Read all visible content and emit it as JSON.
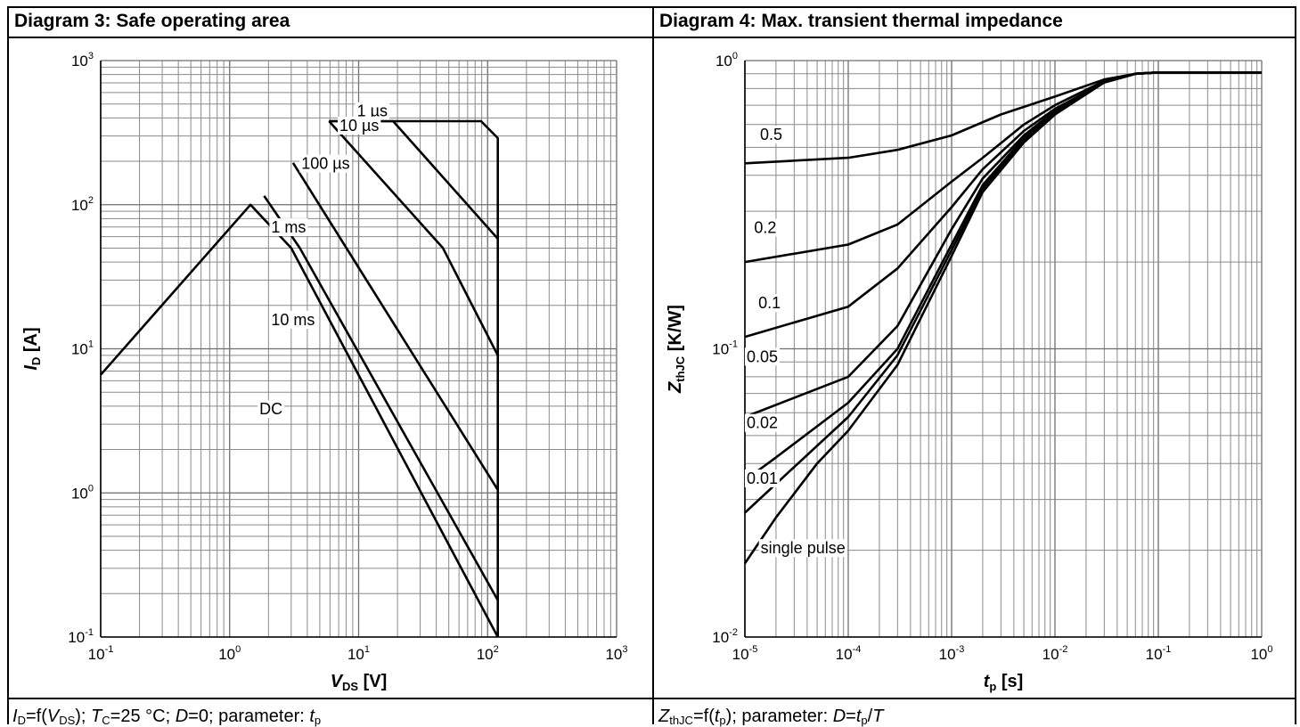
{
  "left_panel": {
    "title": "Diagram 3: Safe operating area",
    "caption": {
      "f1": "I",
      "f1_sub": "D",
      "f2": "=f(",
      "f3": "V",
      "f3_sub": "DS",
      "f4": "); ",
      "f5": "T",
      "f5_sub": "C",
      "f6": "=25 °C; ",
      "f7": "D",
      "f8": "=0; parameter: ",
      "f9": "t",
      "f9_sub": "p"
    }
  },
  "right_panel": {
    "title": "Diagram 4: Max. transient thermal impedance",
    "caption": {
      "f1": "Z",
      "f1_sub": "thJC",
      "f2": "=f(",
      "f3": "t",
      "f3_sub": "p",
      "f4": "); parameter: ",
      "f5": "D",
      "f6": "=",
      "f7": "t",
      "f7_sub": "p",
      "f8": "/",
      "f9": "T"
    }
  },
  "chart_data": [
    {
      "type": "line",
      "title": "Diagram 3: Safe operating area",
      "x_scale": "log",
      "y_scale": "log",
      "xlim": [
        0.1,
        1000
      ],
      "ylim": [
        0.1,
        1000
      ],
      "xlabel": {
        "main": "V",
        "sub": "DS",
        "unit": " [V]"
      },
      "ylabel": {
        "main": "I",
        "sub": "D",
        "unit": " [A]"
      },
      "x_ticks": [
        {
          "base": "10",
          "exp": "-1"
        },
        {
          "base": "10",
          "exp": "0"
        },
        {
          "base": "10",
          "exp": "1"
        },
        {
          "base": "10",
          "exp": "2"
        },
        {
          "base": "10",
          "exp": "3"
        }
      ],
      "y_ticks": [
        {
          "base": "10",
          "exp": "-1"
        },
        {
          "base": "10",
          "exp": "0"
        },
        {
          "base": "10",
          "exp": "1"
        },
        {
          "base": "10",
          "exp": "2"
        },
        {
          "base": "10",
          "exp": "3"
        }
      ],
      "grid": true,
      "series": [
        {
          "name": "1 µs",
          "label_at": [
            9.7,
            410
          ],
          "points": [
            [
              5.9,
              380
            ],
            [
              89,
              380
            ],
            [
              120,
              290
            ],
            [
              120,
              0.1
            ]
          ]
        },
        {
          "name": "10 µs",
          "label_at": [
            7.1,
            325
          ],
          "points": [
            [
              5.9,
              380
            ],
            [
              18.5,
              380
            ],
            [
              120,
              58
            ]
          ]
        },
        {
          "name": "100 µs",
          "label_at": [
            3.6,
            177
          ],
          "points": [
            [
              5.9,
              380
            ],
            [
              45,
              50
            ],
            [
              120,
              9
            ]
          ]
        },
        {
          "name": "1 ms",
          "label_at": [
            2.1,
            64
          ],
          "points": [
            [
              3.1,
              195
            ],
            [
              120,
              1.05
            ]
          ]
        },
        {
          "name": "10 ms",
          "label_at": [
            2.1,
            14.6
          ],
          "points": [
            [
              1.85,
              115
            ],
            [
              3.5,
              50
            ],
            [
              120,
              0.18
            ]
          ]
        },
        {
          "name": "DC",
          "label_at": [
            1.7,
            3.5
          ],
          "points": [
            [
              0.1,
              6.6
            ],
            [
              1.45,
              100
            ],
            [
              3,
              50
            ],
            [
              120,
              0.1
            ]
          ]
        }
      ]
    },
    {
      "type": "line",
      "title": "Diagram 4: Max. transient thermal impedance",
      "x_scale": "log",
      "y_scale": "log",
      "xlim": [
        1e-05,
        1
      ],
      "ylim": [
        0.01,
        1
      ],
      "xlabel": {
        "main": "t",
        "sub": "p",
        "unit": " [s]"
      },
      "ylabel": {
        "main": "Z",
        "sub": "thJC",
        "unit": " [K/W]"
      },
      "x_ticks": [
        {
          "base": "10",
          "exp": "-5"
        },
        {
          "base": "10",
          "exp": "-4"
        },
        {
          "base": "10",
          "exp": "-3"
        },
        {
          "base": "10",
          "exp": "-2"
        },
        {
          "base": "10",
          "exp": "-1"
        },
        {
          "base": "10",
          "exp": "0"
        }
      ],
      "y_ticks": [
        {
          "base": "10",
          "exp": "-2"
        },
        {
          "base": "10",
          "exp": "-1"
        },
        {
          "base": "10",
          "exp": "0"
        }
      ],
      "grid": true,
      "series": [
        {
          "name": "0.5",
          "label_at": [
            1.4e-05,
            0.53
          ],
          "points": [
            [
              1e-05,
              0.44
            ],
            [
              0.0001,
              0.46
            ],
            [
              0.0003,
              0.49
            ],
            [
              0.001,
              0.55
            ],
            [
              0.003,
              0.65
            ],
            [
              0.01,
              0.75
            ],
            [
              0.03,
              0.86
            ],
            [
              0.06,
              0.9
            ],
            [
              0.1,
              0.91
            ],
            [
              1,
              0.91
            ]
          ]
        },
        {
          "name": "0.2",
          "label_at": [
            1.23e-05,
            0.252
          ],
          "points": [
            [
              1e-05,
              0.2
            ],
            [
              0.0001,
              0.23
            ],
            [
              0.0003,
              0.27
            ],
            [
              0.001,
              0.38
            ],
            [
              0.002,
              0.46
            ],
            [
              0.005,
              0.6
            ],
            [
              0.01,
              0.7
            ],
            [
              0.03,
              0.85
            ],
            [
              0.06,
              0.9
            ],
            [
              0.1,
              0.91
            ],
            [
              1,
              0.91
            ]
          ]
        },
        {
          "name": "0.1",
          "label_at": [
            1.35e-05,
            0.138
          ],
          "points": [
            [
              1e-05,
              0.11
            ],
            [
              0.0001,
              0.14
            ],
            [
              0.0003,
              0.19
            ],
            [
              0.001,
              0.31
            ],
            [
              0.002,
              0.42
            ],
            [
              0.005,
              0.57
            ],
            [
              0.01,
              0.68
            ],
            [
              0.03,
              0.84
            ],
            [
              0.06,
              0.9
            ],
            [
              0.1,
              0.91
            ],
            [
              1,
              0.91
            ]
          ]
        },
        {
          "name": "0.05",
          "label_at": [
            1.04e-05,
            0.09
          ],
          "points": [
            [
              1e-05,
              0.058
            ],
            [
              0.0001,
              0.08
            ],
            [
              0.0003,
              0.12
            ],
            [
              0.001,
              0.26
            ],
            [
              0.002,
              0.39
            ],
            [
              0.005,
              0.55
            ],
            [
              0.01,
              0.67
            ],
            [
              0.03,
              0.84
            ],
            [
              0.06,
              0.9
            ],
            [
              0.1,
              0.91
            ],
            [
              1,
              0.91
            ]
          ]
        },
        {
          "name": "0.02",
          "label_at": [
            1.04e-05,
            0.053
          ],
          "points": [
            [
              1e-05,
              0.035
            ],
            [
              2e-05,
              0.042
            ],
            [
              0.0001,
              0.065
            ],
            [
              0.0003,
              0.1
            ],
            [
              0.001,
              0.23
            ],
            [
              0.002,
              0.37
            ],
            [
              0.005,
              0.54
            ],
            [
              0.01,
              0.66
            ],
            [
              0.03,
              0.84
            ],
            [
              0.06,
              0.9
            ],
            [
              0.1,
              0.91
            ],
            [
              1,
              0.91
            ]
          ]
        },
        {
          "name": "0.01",
          "label_at": [
            1.04e-05,
            0.034
          ],
          "points": [
            [
              1e-05,
              0.027
            ],
            [
              2e-05,
              0.034
            ],
            [
              0.0001,
              0.058
            ],
            [
              0.0003,
              0.095
            ],
            [
              0.001,
              0.22
            ],
            [
              0.002,
              0.36
            ],
            [
              0.005,
              0.53
            ],
            [
              0.01,
              0.66
            ],
            [
              0.03,
              0.84
            ],
            [
              0.06,
              0.9
            ],
            [
              0.1,
              0.91
            ],
            [
              1,
              0.91
            ]
          ]
        },
        {
          "name": "single pulse",
          "label_at": [
            1.42e-05,
            0.0195
          ],
          "points": [
            [
              1e-05,
              0.018
            ],
            [
              2e-05,
              0.026
            ],
            [
              5e-05,
              0.04
            ],
            [
              0.0001,
              0.052
            ],
            [
              0.0003,
              0.088
            ],
            [
              0.001,
              0.21
            ],
            [
              0.002,
              0.35
            ],
            [
              0.005,
              0.52
            ],
            [
              0.01,
              0.65
            ],
            [
              0.03,
              0.84
            ],
            [
              0.06,
              0.9
            ],
            [
              0.1,
              0.91
            ],
            [
              1,
              0.91
            ]
          ]
        }
      ]
    }
  ]
}
